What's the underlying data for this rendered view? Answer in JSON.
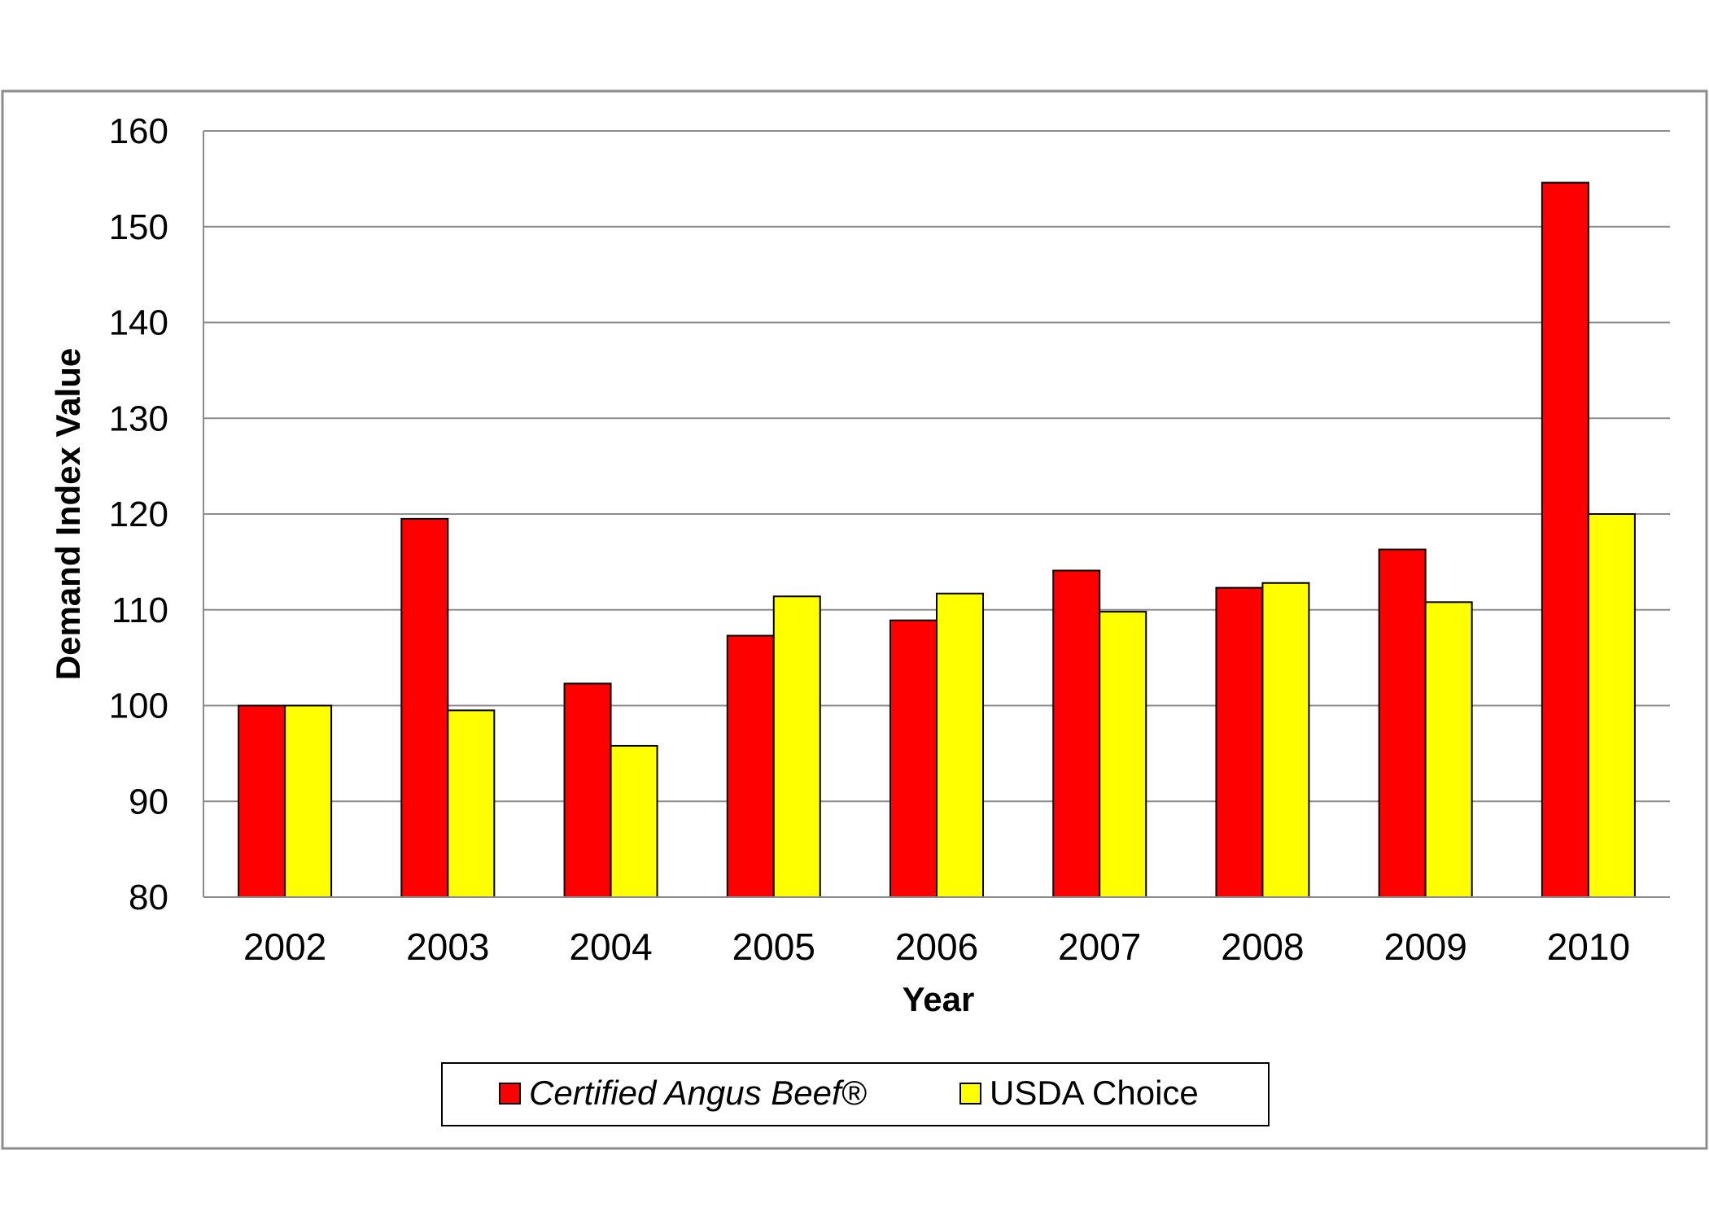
{
  "chart_data": {
    "type": "bar",
    "title": "",
    "xlabel": "Year",
    "ylabel": "Demand Index Value",
    "categories": [
      "2002",
      "2003",
      "2004",
      "2005",
      "2006",
      "2007",
      "2008",
      "2009",
      "2010"
    ],
    "series": [
      {
        "name": "Certified Angus Beef®",
        "color": "#ff0000",
        "legend_italic": true,
        "values": [
          100,
          119.5,
          102.3,
          107.3,
          108.9,
          114.1,
          112.3,
          116.3,
          154.6
        ]
      },
      {
        "name": "USDA Choice",
        "color": "#ffff00",
        "legend_italic": false,
        "values": [
          100,
          99.5,
          95.8,
          111.4,
          111.7,
          109.8,
          112.8,
          110.8,
          120.0
        ]
      }
    ],
    "ylim": [
      80,
      160
    ],
    "yticks": [
      80,
      90,
      100,
      110,
      120,
      130,
      140,
      150,
      160
    ],
    "grid": true,
    "legend_position": "bottom-center"
  }
}
